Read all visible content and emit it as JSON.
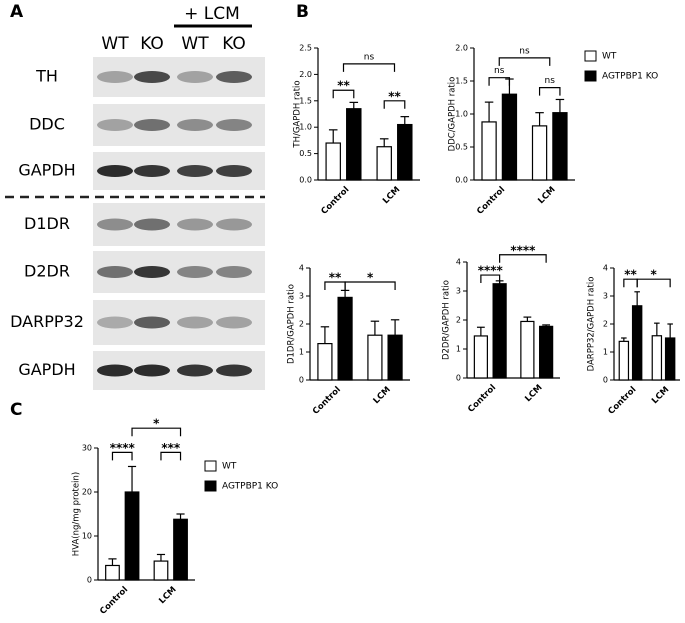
{
  "panel_labels": [
    "A",
    "B",
    "C"
  ],
  "blot": {
    "treatment": "+ LCM",
    "lanes": [
      "WT",
      "KO",
      "WT",
      "KO"
    ],
    "rows": [
      "TH",
      "DDC",
      "GAPDH",
      "D1DR",
      "D2DR",
      "DARPP32",
      "GAPDH"
    ]
  },
  "chart_data": [
    {
      "type": "bar",
      "ylabel": "TH/GAPDH ratio",
      "categories": [
        "Control",
        "LCM"
      ],
      "series": [
        {
          "color": "#ffffff",
          "values": [
            0.7,
            0.63
          ],
          "errors": [
            0.25,
            0.15
          ]
        },
        {
          "color": "#000000",
          "values": [
            1.35,
            1.05
          ],
          "errors": [
            0.12,
            0.15
          ]
        }
      ],
      "ylim": [
        0,
        2.5
      ],
      "yticks": [
        {
          "value": 0,
          "label": "0.0"
        },
        {
          "value": 0.5,
          "label": "0.5"
        },
        {
          "value": 1,
          "label": "1.0"
        },
        {
          "value": 1.5,
          "label": "1.5"
        },
        {
          "value": 2,
          "label": "2.0"
        },
        {
          "value": 2.5,
          "label": "2.5"
        }
      ],
      "annotations": [
        "**",
        "**",
        "ns"
      ]
    },
    {
      "type": "bar",
      "ylabel": "DDC/GAPDH ratio",
      "categories": [
        "Control",
        "LCM"
      ],
      "legend": "right",
      "series": [
        {
          "name": "WT",
          "color": "#ffffff",
          "values": [
            0.88,
            0.82
          ],
          "errors": [
            0.3,
            0.2
          ]
        },
        {
          "name": "AGTPBP1 KO",
          "color": "#000000",
          "values": [
            1.3,
            1.02
          ],
          "errors": [
            0.23,
            0.2
          ]
        }
      ],
      "ylim": [
        0,
        2
      ],
      "yticks": [
        {
          "value": 0,
          "label": "0.0"
        },
        {
          "value": 0.5,
          "label": "0.5"
        },
        {
          "value": 1,
          "label": "1.0"
        },
        {
          "value": 1.5,
          "label": "1.5"
        },
        {
          "value": 2,
          "label": "2.0"
        }
      ],
      "annotations": [
        "ns",
        "ns",
        "ns"
      ]
    },
    {
      "type": "bar",
      "ylabel": "D1DR/GAPDH ratio",
      "categories": [
        "Control",
        "LCM"
      ],
      "series": [
        {
          "color": "#ffffff",
          "values": [
            1.3,
            1.6
          ],
          "errors": [
            0.6,
            0.5
          ]
        },
        {
          "color": "#000000",
          "values": [
            2.95,
            1.6
          ],
          "errors": [
            0.25,
            0.55
          ]
        }
      ],
      "ylim": [
        0,
        4
      ],
      "yticks": [
        0,
        1,
        2,
        3,
        4
      ],
      "annotations": [
        "**",
        "*"
      ]
    },
    {
      "type": "bar",
      "ylabel": "D2DR/GAPDH ratio",
      "categories": [
        "Control",
        "LCM"
      ],
      "series": [
        {
          "color": "#ffffff",
          "values": [
            1.45,
            1.95
          ],
          "errors": [
            0.3,
            0.15
          ]
        },
        {
          "color": "#000000",
          "values": [
            3.25,
            1.78
          ],
          "errors": [
            0.1,
            0.05
          ]
        }
      ],
      "ylim": [
        0,
        4
      ],
      "yticks": [
        0,
        1,
        2,
        3,
        4
      ],
      "annotations": [
        "****",
        "****"
      ]
    },
    {
      "type": "bar",
      "ylabel": "DARPP32/GAPDH ratio",
      "categories": [
        "Control",
        "LCM"
      ],
      "series": [
        {
          "color": "#ffffff",
          "values": [
            1.38,
            1.58
          ],
          "errors": [
            0.12,
            0.45
          ]
        },
        {
          "color": "#000000",
          "values": [
            2.65,
            1.5
          ],
          "errors": [
            0.5,
            0.5
          ]
        }
      ],
      "ylim": [
        0,
        4
      ],
      "yticks": [
        0,
        1,
        2,
        3,
        4
      ],
      "annotations": [
        "**",
        "*"
      ]
    },
    {
      "type": "bar",
      "ylabel": "HVA(ng/mg protein)",
      "categories": [
        "Control",
        "LCM"
      ],
      "legend": "right",
      "series": [
        {
          "name": "WT",
          "color": "#ffffff",
          "values": [
            3.3,
            4.3
          ],
          "errors": [
            1.5,
            1.5
          ]
        },
        {
          "name": "AGTPBP1 KO",
          "color": "#000000",
          "values": [
            20,
            13.8
          ],
          "errors": [
            5.8,
            1.2
          ]
        }
      ],
      "ylim": [
        0,
        30
      ],
      "yticks": [
        0,
        10,
        20,
        30
      ],
      "annotations": [
        "****",
        "***",
        "*"
      ]
    }
  ]
}
